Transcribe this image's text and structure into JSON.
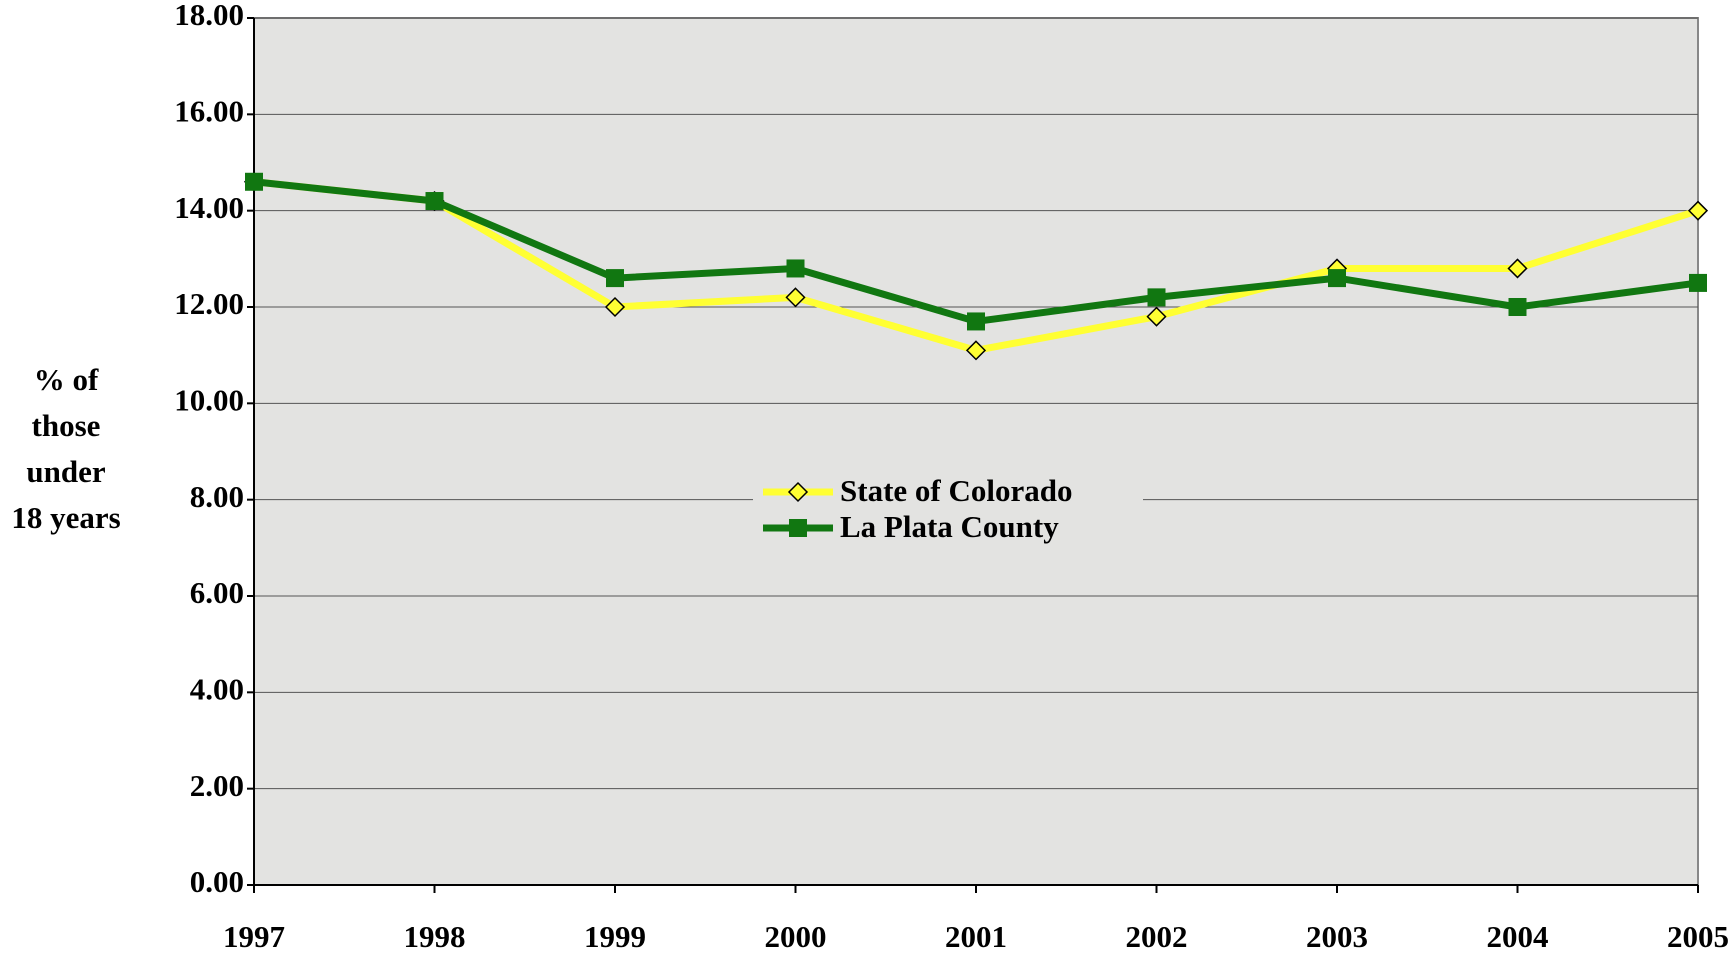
{
  "chart_data": {
    "type": "line",
    "y_label": [
      "% of",
      "those",
      "under",
      "18 years"
    ],
    "x": [
      1997,
      1998,
      1999,
      2000,
      2001,
      2002,
      2003,
      2004,
      2005
    ],
    "xlim": [
      1997,
      2005
    ],
    "xticks": [
      1997,
      1998,
      1999,
      2000,
      2001,
      2002,
      2003,
      2004,
      2005
    ],
    "ylim": [
      0,
      18
    ],
    "yticks": [
      {
        "value": 0,
        "label": "0.00"
      },
      {
        "value": 2,
        "label": "2.00"
      },
      {
        "value": 4,
        "label": "4.00"
      },
      {
        "value": 6,
        "label": "6.00"
      },
      {
        "value": 8,
        "label": "8.00"
      },
      {
        "value": 10,
        "label": "10.00"
      },
      {
        "value": 12,
        "label": "12.00"
      },
      {
        "value": 14,
        "label": "14.00"
      },
      {
        "value": 16,
        "label": "16.00"
      },
      {
        "value": 18,
        "label": "18.00"
      }
    ],
    "grid": true,
    "legend": "center",
    "series": [
      {
        "name": "State of Colorado",
        "color": "#ffff33",
        "marker": "diamond",
        "values": [
          14.6,
          14.2,
          12.0,
          12.2,
          11.1,
          11.8,
          12.8,
          12.8,
          14.0
        ]
      },
      {
        "name": "La Plata County",
        "color": "#117711",
        "marker": "square",
        "values": [
          14.6,
          14.2,
          12.6,
          12.8,
          11.7,
          12.2,
          12.6,
          12.0,
          12.5
        ]
      }
    ]
  }
}
